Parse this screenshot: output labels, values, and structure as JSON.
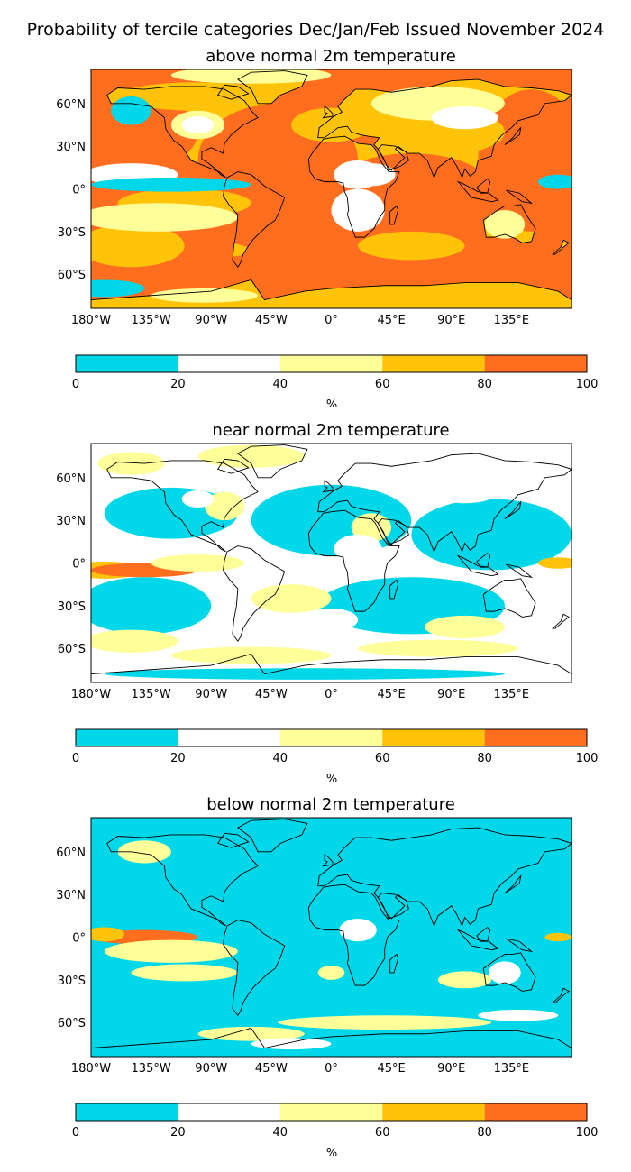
{
  "title": "Probability of tercile categories Dec/Jan/Feb Issued November 2024",
  "colors": {
    "bin_0_20": "#00d7e9",
    "bin_20_40": "#ffffff",
    "bin_40_60": "#ffff99",
    "bin_60_80": "#ffc40a",
    "bin_80_100": "#ff6e1e",
    "coast": "#000000"
  },
  "colorbar": {
    "ticks": [
      "0",
      "20",
      "40",
      "60",
      "80",
      "100"
    ],
    "unit": "%"
  },
  "axes": {
    "lon_ticks": [
      "180°W",
      "135°W",
      "90°W",
      "45°W",
      "0°",
      "45°E",
      "90°E",
      "135°E"
    ],
    "lat_ticks": [
      "60°N",
      "30°N",
      "0°",
      "30°S",
      "60°S"
    ]
  },
  "panels": [
    {
      "id": "above",
      "title": "above normal 2m temperature",
      "dominant": "orange"
    },
    {
      "id": "near",
      "title": "near normal 2m temperature",
      "dominant": "cyan-white"
    },
    {
      "id": "below",
      "title": "below normal 2m temperature",
      "dominant": "cyan"
    }
  ]
}
